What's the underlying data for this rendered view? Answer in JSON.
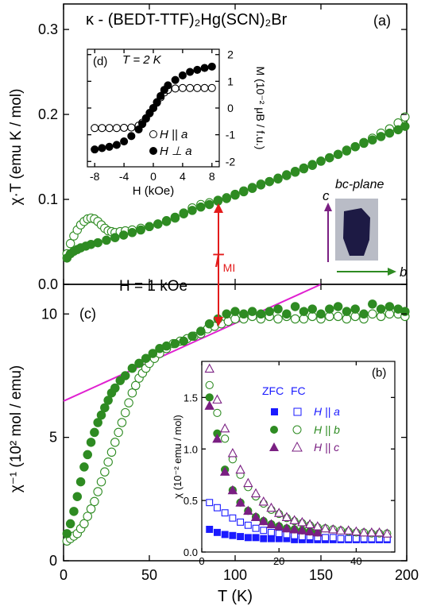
{
  "colors": {
    "green": "#2e8b22",
    "purple": "#7a1f82",
    "blue": "#1a1aff",
    "magenta": "#e020d0",
    "red": "#e31b1b",
    "axis": "#000000"
  },
  "texts": {
    "title": "κ - (BEDT-TTF)₂Hg(SCN)₂Br",
    "label_a": "(a)",
    "label_b": "(b)",
    "label_c": "(c)",
    "label_d": "(d)",
    "field_note": "H = 1 kOe",
    "tmi": "T",
    "tmi_sub": "MI",
    "bc_plane": "bc-plane",
    "axis_c": "c",
    "axis_b": "b",
    "xlabel_main": "T (K)",
    "ylabel_a": "χ·T (emu K / mol)",
    "ylabel_c": "χ⁻¹ (10² mol / emu)",
    "inset_d_title": "T = 2 K",
    "inset_d_xlabel": "H (kOe)",
    "inset_d_ylabel": "M (10⁻² μB / f.u.)",
    "inset_d_leg1": "H || a",
    "inset_d_leg2": "H ⊥ a",
    "inset_b_ylabel": "χ (10⁻² emu / mol)",
    "inset_b_zfc": "ZFC",
    "inset_b_fc": "FC",
    "inset_b_leg_a": "H || a",
    "inset_b_leg_b": "H || b",
    "inset_b_leg_c": "H || c"
  },
  "chart_data": [
    {
      "id": "a",
      "type": "scatter",
      "xlim": [
        0,
        200
      ],
      "ylim": [
        0,
        0.33
      ],
      "xticks": [
        0,
        50,
        100,
        150,
        200
      ],
      "yticks": [
        0.0,
        0.1,
        0.2,
        0.3
      ],
      "ytick_labels": [
        "0.0",
        "0.1",
        "0.2",
        "0.3"
      ],
      "series": [
        {
          "marker": "open-circle",
          "color": "green",
          "x": [
            2,
            4,
            6,
            8,
            10,
            12,
            14,
            16,
            18,
            20,
            22,
            24,
            26,
            28,
            30,
            33,
            36,
            40,
            45,
            50,
            55,
            60,
            65,
            70,
            75,
            80,
            85,
            90,
            95,
            100,
            105,
            110,
            115,
            120,
            125,
            130,
            135,
            140,
            145,
            150,
            155,
            160,
            165,
            170,
            175,
            180,
            185,
            190,
            195,
            199
          ],
          "y": [
            0.036,
            0.048,
            0.057,
            0.064,
            0.07,
            0.074,
            0.077,
            0.078,
            0.077,
            0.074,
            0.07,
            0.066,
            0.063,
            0.062,
            0.061,
            0.062,
            0.063,
            0.064,
            0.066,
            0.068,
            0.071,
            0.074,
            0.078,
            0.084,
            0.09,
            0.094,
            0.096,
            0.099,
            0.102,
            0.106,
            0.11,
            0.114,
            0.118,
            0.121,
            0.124,
            0.128,
            0.132,
            0.136,
            0.14,
            0.145,
            0.149,
            0.153,
            0.158,
            0.162,
            0.167,
            0.172,
            0.178,
            0.183,
            0.19,
            0.197
          ]
        },
        {
          "marker": "filled-circle",
          "color": "green",
          "x": [
            2,
            4,
            6,
            8,
            10,
            13,
            16,
            20,
            25,
            30,
            35,
            40,
            45,
            50,
            55,
            60,
            65,
            70,
            75,
            80,
            85,
            90,
            95,
            100,
            105,
            110,
            115,
            120,
            125,
            130,
            135,
            140,
            145,
            150,
            155,
            160,
            165,
            170,
            175,
            180,
            185,
            190,
            195,
            199
          ],
          "y": [
            0.031,
            0.036,
            0.039,
            0.041,
            0.043,
            0.045,
            0.047,
            0.049,
            0.052,
            0.055,
            0.058,
            0.061,
            0.064,
            0.068,
            0.071,
            0.075,
            0.079,
            0.083,
            0.087,
            0.091,
            0.094,
            0.098,
            0.101,
            0.105,
            0.109,
            0.113,
            0.117,
            0.121,
            0.125,
            0.129,
            0.133,
            0.137,
            0.141,
            0.145,
            0.149,
            0.153,
            0.157,
            0.162,
            0.166,
            0.17,
            0.174,
            0.178,
            0.182,
            0.186
          ]
        }
      ]
    },
    {
      "id": "c",
      "type": "scatter",
      "xlim": [
        0,
        200
      ],
      "ylim": [
        0,
        11.2
      ],
      "xticks": [
        0,
        50,
        100,
        150,
        200
      ],
      "yticks": [
        0,
        5,
        10
      ],
      "series": [
        {
          "marker": "open-circle",
          "color": "green",
          "x": [
            2,
            4,
            6,
            8,
            10,
            12,
            14,
            16,
            18,
            20,
            22,
            24,
            26,
            28,
            30,
            32,
            34,
            36,
            38,
            40,
            42,
            44,
            46,
            48,
            50,
            53,
            56,
            60,
            64,
            68,
            72,
            76,
            80,
            84,
            88,
            92,
            96,
            100,
            105,
            110,
            115,
            120,
            125,
            130,
            135,
            140,
            145,
            150,
            155,
            160,
            165,
            170,
            175,
            180,
            185,
            190,
            195,
            199
          ],
          "y": [
            0.8,
            0.9,
            1.0,
            1.1,
            1.3,
            1.5,
            1.8,
            2.1,
            2.4,
            2.8,
            3.2,
            3.6,
            4.0,
            4.4,
            4.8,
            5.2,
            5.6,
            6.0,
            6.4,
            6.8,
            7.1,
            7.4,
            7.6,
            7.8,
            8.0,
            8.2,
            8.4,
            8.6,
            8.8,
            8.9,
            9.0,
            9.1,
            9.2,
            9.4,
            9.5,
            9.6,
            9.7,
            9.8,
            9.8,
            9.9,
            9.8,
            9.9,
            9.8,
            9.9,
            9.8,
            9.8,
            9.9,
            9.8,
            9.9,
            9.9,
            9.8,
            9.9,
            9.8,
            10.0,
            9.9,
            10.0,
            10.0,
            9.9
          ]
        },
        {
          "marker": "filled-circle",
          "color": "green",
          "x": [
            2,
            4,
            6,
            8,
            10,
            12,
            14,
            16,
            18,
            20,
            22,
            24,
            26,
            28,
            30,
            33,
            36,
            40,
            44,
            48,
            52,
            56,
            60,
            65,
            70,
            75,
            80,
            85,
            90,
            95,
            100,
            105,
            110,
            115,
            120,
            125,
            130,
            135,
            140,
            145,
            150,
            155,
            160,
            165,
            170,
            175,
            180,
            185,
            190,
            195,
            199
          ],
          "y": [
            1.1,
            1.5,
            2.0,
            2.6,
            3.2,
            3.8,
            4.3,
            4.8,
            5.2,
            5.6,
            5.9,
            6.2,
            6.5,
            6.8,
            7.0,
            7.3,
            7.5,
            7.8,
            8.0,
            8.2,
            8.4,
            8.6,
            8.7,
            8.8,
            8.9,
            9.1,
            9.3,
            9.6,
            9.8,
            10.0,
            10.1,
            10.0,
            10.1,
            10.0,
            10.1,
            10.2,
            10.0,
            10.3,
            10.1,
            10.2,
            10.0,
            10.2,
            10.3,
            10.1,
            10.2,
            10.0,
            10.4,
            10.2,
            10.3,
            10.2,
            10.1
          ]
        }
      ],
      "lines": [
        {
          "color": "magenta",
          "x": [
            0,
            150
          ],
          "y": [
            6.47,
            11.2
          ]
        }
      ]
    },
    {
      "id": "d",
      "type": "scatter",
      "xlim": [
        -9,
        9
      ],
      "ylim": [
        -2.2,
        2.2
      ],
      "xticks": [
        -8,
        -4,
        0,
        4,
        8
      ],
      "yticks": [
        -2,
        -1,
        0,
        1,
        2
      ],
      "series": [
        {
          "name": "H || a",
          "marker": "open-circle",
          "color": "black",
          "x": [
            -8,
            -7,
            -6,
            -5,
            -4,
            -3,
            -2,
            -1.5,
            -1,
            -0.5,
            0,
            0.5,
            1,
            1.5,
            2,
            3,
            4,
            5,
            6,
            7,
            8
          ],
          "y": [
            -0.75,
            -0.75,
            -0.75,
            -0.75,
            -0.74,
            -0.73,
            -0.66,
            -0.55,
            -0.38,
            -0.18,
            0.0,
            0.2,
            0.4,
            0.58,
            0.68,
            0.73,
            0.75,
            0.75,
            0.75,
            0.75,
            0.75
          ]
        },
        {
          "name": "H ⊥ a",
          "marker": "filled-circle",
          "color": "black",
          "x": [
            -8,
            -7,
            -6,
            -5,
            -4,
            -3,
            -2,
            -1.5,
            -1,
            -0.5,
            0,
            0.5,
            1,
            1.5,
            2,
            3,
            4,
            5,
            6,
            7,
            8
          ],
          "y": [
            -1.55,
            -1.5,
            -1.45,
            -1.38,
            -1.25,
            -1.05,
            -0.8,
            -0.6,
            -0.4,
            -0.2,
            0.0,
            0.22,
            0.45,
            0.68,
            0.85,
            1.05,
            1.22,
            1.35,
            1.43,
            1.5,
            1.55
          ]
        }
      ]
    },
    {
      "id": "b",
      "type": "scatter",
      "xlim": [
        0,
        50
      ],
      "ylim": [
        0,
        1.85
      ],
      "xticks": [
        0,
        20,
        40
      ],
      "yticks": [
        0.0,
        0.5,
        1.0,
        1.5
      ],
      "ytick_labels": [
        "0.0",
        "0.5",
        "1.0",
        "1.5"
      ],
      "series": [
        {
          "name": "H || a ZFC",
          "marker": "filled-square",
          "color": "blue",
          "x": [
            2,
            4,
            6,
            8,
            10,
            12,
            14,
            16,
            18,
            20,
            22,
            24,
            26,
            28,
            30,
            32,
            34,
            36,
            38,
            40,
            42,
            44,
            46,
            48
          ],
          "y": [
            0.22,
            0.19,
            0.17,
            0.16,
            0.15,
            0.14,
            0.14,
            0.13,
            0.13,
            0.13,
            0.13,
            0.12,
            0.12,
            0.12,
            0.12,
            0.12,
            0.12,
            0.12,
            0.12,
            0.12,
            0.12,
            0.12,
            0.12,
            0.12
          ]
        },
        {
          "name": "H || a FC",
          "marker": "open-square",
          "color": "blue",
          "x": [
            2,
            4,
            6,
            8,
            10,
            12,
            14,
            16,
            18,
            20,
            22,
            24,
            26,
            28,
            30,
            32,
            34,
            36,
            38,
            40,
            42,
            44,
            46,
            48
          ],
          "y": [
            0.48,
            0.43,
            0.38,
            0.33,
            0.29,
            0.26,
            0.23,
            0.21,
            0.19,
            0.18,
            0.17,
            0.16,
            0.15,
            0.15,
            0.14,
            0.14,
            0.14,
            0.13,
            0.13,
            0.13,
            0.13,
            0.13,
            0.13,
            0.13
          ]
        },
        {
          "name": "H || b ZFC",
          "marker": "filled-circle",
          "color": "green",
          "x": [
            2,
            4,
            6,
            8,
            10,
            12,
            14,
            16,
            18,
            20,
            22,
            24,
            26,
            28,
            30
          ],
          "y": [
            1.5,
            1.15,
            0.8,
            0.6,
            0.48,
            0.4,
            0.34,
            0.3,
            0.27,
            0.25,
            0.23,
            0.22,
            0.21,
            0.2,
            0.19
          ]
        },
        {
          "name": "H || b FC",
          "marker": "open-circle",
          "color": "green",
          "x": [
            2,
            4,
            6,
            8,
            10,
            12,
            14,
            16,
            18,
            20,
            22,
            24,
            26,
            28,
            30,
            32,
            34,
            36,
            38,
            40,
            42,
            44,
            46,
            48
          ],
          "y": [
            1.62,
            1.35,
            1.1,
            0.9,
            0.75,
            0.63,
            0.54,
            0.47,
            0.41,
            0.37,
            0.33,
            0.3,
            0.28,
            0.26,
            0.24,
            0.23,
            0.22,
            0.21,
            0.2,
            0.19,
            0.19,
            0.18,
            0.18,
            0.18
          ]
        },
        {
          "name": "H || c ZFC",
          "marker": "filled-triangle",
          "color": "purple",
          "x": [
            2,
            4,
            6,
            8,
            10,
            12,
            14,
            16,
            18,
            20,
            22,
            24,
            26,
            28,
            30
          ],
          "y": [
            1.42,
            1.1,
            0.78,
            0.6,
            0.48,
            0.4,
            0.34,
            0.3,
            0.27,
            0.25,
            0.23,
            0.22,
            0.21,
            0.2,
            0.19
          ]
        },
        {
          "name": "H || c FC",
          "marker": "open-triangle",
          "color": "purple",
          "x": [
            2,
            4,
            6,
            8,
            10,
            12,
            14,
            16,
            18,
            20,
            22,
            24,
            26,
            28,
            30,
            32,
            34,
            36,
            38,
            40,
            42,
            44,
            46,
            48
          ],
          "y": [
            1.78,
            1.48,
            1.2,
            0.96,
            0.8,
            0.67,
            0.57,
            0.49,
            0.43,
            0.38,
            0.34,
            0.31,
            0.29,
            0.27,
            0.25,
            0.23,
            0.22,
            0.21,
            0.21,
            0.2,
            0.19,
            0.19,
            0.19,
            0.18
          ]
        }
      ]
    }
  ]
}
